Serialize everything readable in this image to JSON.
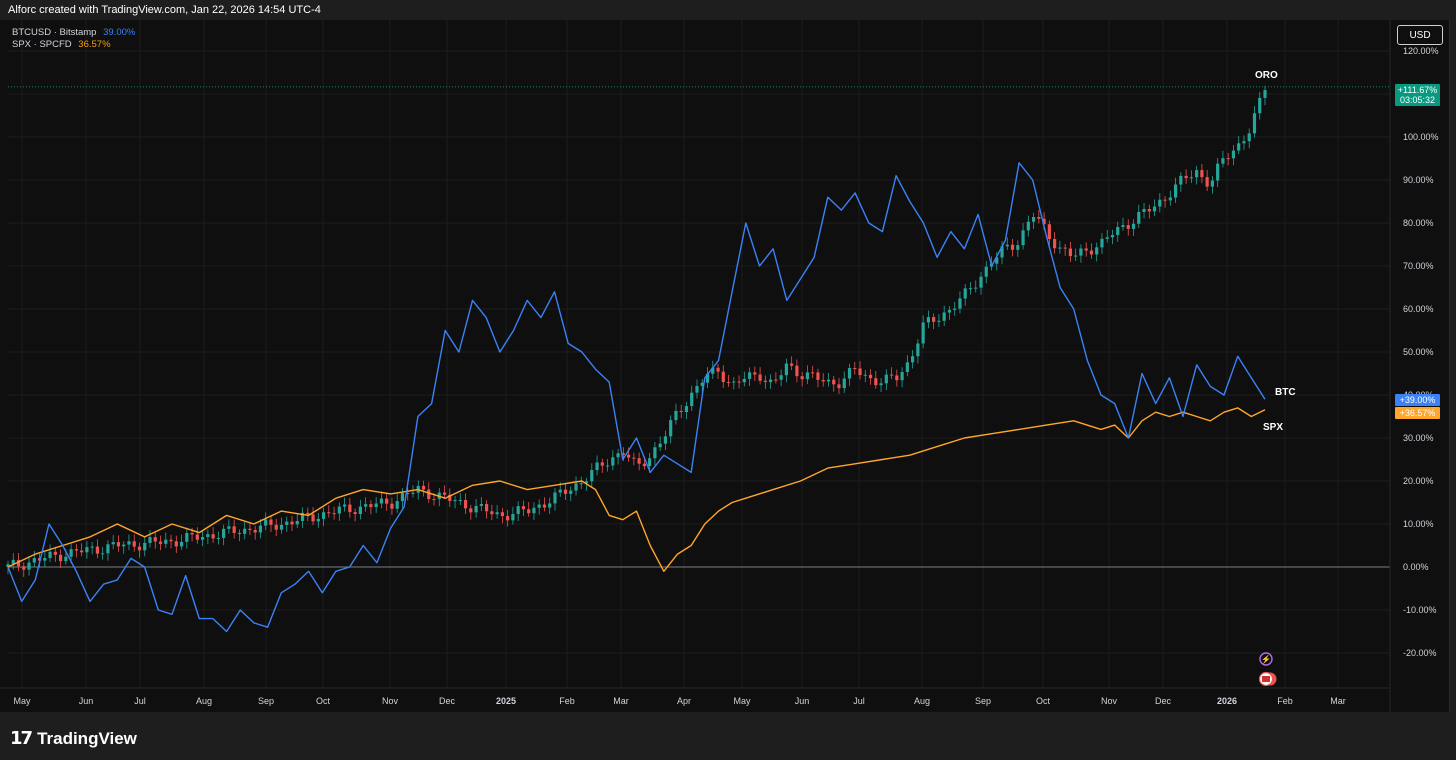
{
  "header": {
    "text": "Alforc created with TradingView.com, Jan 22, 2026 14:54 UTC-4"
  },
  "footer": {
    "brand": "TradingView"
  },
  "legend": [
    {
      "symbol": "BTCUSD · Bitstamp",
      "value": "39.00%",
      "color": "#3b82f6"
    },
    {
      "symbol": "SPX · SPCFD",
      "value": "36.57%",
      "color": "#f59e0b"
    }
  ],
  "toolbar": {
    "currency": "USD"
  },
  "colors": {
    "btc": "#3b82f6",
    "spx": "#ffa62b",
    "up": "#26a69a",
    "down": "#ef5350",
    "oro_badge": "#089981"
  },
  "chart_data": {
    "type": "line",
    "ylim": [
      -25,
      125
    ],
    "y_ticks": [
      "120.00%",
      "110.00%",
      "100.00%",
      "90.00%",
      "80.00%",
      "70.00%",
      "60.00%",
      "50.00%",
      "40.00%",
      "30.00%",
      "20.00%",
      "10.00%",
      "0.00%",
      "-10.00%",
      "-20.00%"
    ],
    "x_ticks": [
      "May",
      "Jun",
      "Jul",
      "Aug",
      "Sep",
      "Oct",
      "Nov",
      "Dec",
      "2025",
      "Feb",
      "Mar",
      "Apr",
      "May",
      "Jun",
      "Jul",
      "Aug",
      "Sep",
      "Oct",
      "Nov",
      "Dec",
      "2026",
      "Feb",
      "Mar"
    ],
    "series": [
      {
        "name": "BTC",
        "values": [
          [
            0,
            0
          ],
          [
            1,
            -8
          ],
          [
            2,
            -3
          ],
          [
            3,
            10
          ],
          [
            4,
            5
          ],
          [
            5,
            -1
          ],
          [
            6,
            -8
          ],
          [
            7,
            -4
          ],
          [
            8,
            -3
          ],
          [
            9,
            2
          ],
          [
            10,
            0
          ],
          [
            11,
            -10
          ],
          [
            12,
            -11
          ],
          [
            13,
            -2
          ],
          [
            14,
            -12
          ],
          [
            15,
            -12
          ],
          [
            16,
            -15
          ],
          [
            17,
            -10
          ],
          [
            18,
            -13
          ],
          [
            19,
            -14
          ],
          [
            20,
            -6
          ],
          [
            21,
            -4
          ],
          [
            22,
            -1
          ],
          [
            23,
            -6
          ],
          [
            24,
            -1
          ],
          [
            25,
            0
          ],
          [
            26,
            5
          ],
          [
            27,
            1
          ],
          [
            28,
            9
          ],
          [
            29,
            14
          ],
          [
            30,
            35
          ],
          [
            31,
            38
          ],
          [
            32,
            55
          ],
          [
            33,
            50
          ],
          [
            34,
            62
          ],
          [
            35,
            58
          ],
          [
            36,
            50
          ],
          [
            37,
            55
          ],
          [
            38,
            62
          ],
          [
            39,
            58
          ],
          [
            40,
            64
          ],
          [
            41,
            52
          ],
          [
            42,
            50
          ],
          [
            43,
            46
          ],
          [
            44,
            43
          ],
          [
            45,
            25
          ],
          [
            46,
            30
          ],
          [
            47,
            22
          ],
          [
            48,
            26
          ],
          [
            49,
            24
          ],
          [
            50,
            22
          ],
          [
            51,
            44
          ],
          [
            52,
            48
          ],
          [
            53,
            64
          ],
          [
            54,
            80
          ],
          [
            55,
            70
          ],
          [
            56,
            74
          ],
          [
            57,
            62
          ],
          [
            58,
            67
          ],
          [
            59,
            72
          ],
          [
            60,
            86
          ],
          [
            61,
            83
          ],
          [
            62,
            87
          ],
          [
            63,
            80
          ],
          [
            64,
            78
          ],
          [
            65,
            91
          ],
          [
            66,
            85
          ],
          [
            67,
            80
          ],
          [
            68,
            72
          ],
          [
            69,
            78
          ],
          [
            70,
            74
          ],
          [
            71,
            82
          ],
          [
            72,
            70
          ],
          [
            73,
            76
          ],
          [
            74,
            94
          ],
          [
            75,
            90
          ],
          [
            76,
            77
          ],
          [
            77,
            65
          ],
          [
            78,
            60
          ],
          [
            79,
            48
          ],
          [
            80,
            40
          ],
          [
            81,
            38
          ],
          [
            82,
            30
          ],
          [
            83,
            45
          ],
          [
            84,
            38
          ],
          [
            85,
            44
          ],
          [
            86,
            35
          ],
          [
            87,
            47
          ],
          [
            88,
            42
          ],
          [
            89,
            40
          ],
          [
            90,
            49
          ],
          [
            91,
            44
          ],
          [
            92,
            39
          ]
        ]
      },
      {
        "name": "SPX",
        "values": [
          [
            0,
            0
          ],
          [
            2,
            3
          ],
          [
            4,
            5
          ],
          [
            6,
            7
          ],
          [
            8,
            10
          ],
          [
            10,
            7
          ],
          [
            12,
            10
          ],
          [
            14,
            8
          ],
          [
            16,
            12
          ],
          [
            18,
            10
          ],
          [
            20,
            13
          ],
          [
            22,
            12
          ],
          [
            24,
            16
          ],
          [
            26,
            18
          ],
          [
            28,
            17
          ],
          [
            30,
            18
          ],
          [
            32,
            16
          ],
          [
            34,
            19
          ],
          [
            36,
            20
          ],
          [
            38,
            18
          ],
          [
            40,
            19
          ],
          [
            42,
            20
          ],
          [
            43,
            18
          ],
          [
            44,
            12
          ],
          [
            45,
            11
          ],
          [
            46,
            13
          ],
          [
            47,
            5
          ],
          [
            48,
            -1
          ],
          [
            49,
            3
          ],
          [
            50,
            5
          ],
          [
            51,
            10
          ],
          [
            52,
            13
          ],
          [
            53,
            15
          ],
          [
            54,
            16
          ],
          [
            56,
            18
          ],
          [
            58,
            20
          ],
          [
            60,
            23
          ],
          [
            62,
            24
          ],
          [
            64,
            25
          ],
          [
            66,
            26
          ],
          [
            68,
            28
          ],
          [
            70,
            30
          ],
          [
            72,
            31
          ],
          [
            74,
            32
          ],
          [
            76,
            33
          ],
          [
            78,
            34
          ],
          [
            80,
            32
          ],
          [
            81,
            33
          ],
          [
            82,
            30
          ],
          [
            83,
            34
          ],
          [
            84,
            36
          ],
          [
            85,
            35
          ],
          [
            86,
            36
          ],
          [
            87,
            35
          ],
          [
            88,
            34
          ],
          [
            89,
            36
          ],
          [
            90,
            37
          ],
          [
            91,
            35
          ],
          [
            92,
            36.57
          ]
        ]
      },
      {
        "name": "ORO",
        "values": [
          [
            0,
            0
          ],
          [
            4,
            3
          ],
          [
            8,
            5
          ],
          [
            12,
            6
          ],
          [
            16,
            8
          ],
          [
            20,
            10
          ],
          [
            24,
            13
          ],
          [
            28,
            15
          ],
          [
            30,
            18
          ],
          [
            32,
            16
          ],
          [
            34,
            14
          ],
          [
            36,
            12
          ],
          [
            38,
            13
          ],
          [
            40,
            16
          ],
          [
            42,
            20
          ],
          [
            44,
            25
          ],
          [
            45,
            27
          ],
          [
            46,
            23
          ],
          [
            47,
            26
          ],
          [
            48,
            30
          ],
          [
            49,
            36
          ],
          [
            50,
            40
          ],
          [
            51,
            44
          ],
          [
            52,
            46
          ],
          [
            53,
            42
          ],
          [
            54,
            44
          ],
          [
            55,
            45
          ],
          [
            56,
            42
          ],
          [
            57,
            47
          ],
          [
            58,
            45
          ],
          [
            59,
            44
          ],
          [
            60,
            43
          ],
          [
            61,
            43
          ],
          [
            62,
            46
          ],
          [
            63,
            44
          ],
          [
            64,
            43
          ],
          [
            65,
            44
          ],
          [
            66,
            48
          ],
          [
            67,
            56
          ],
          [
            68,
            58
          ],
          [
            69,
            60
          ],
          [
            70,
            63
          ],
          [
            71,
            67
          ],
          [
            72,
            71
          ],
          [
            73,
            74
          ],
          [
            74,
            76
          ],
          [
            75,
            82
          ],
          [
            76,
            78
          ],
          [
            77,
            74
          ],
          [
            78,
            72
          ],
          [
            79,
            74
          ],
          [
            80,
            75
          ],
          [
            81,
            78
          ],
          [
            82,
            80
          ],
          [
            83,
            82
          ],
          [
            84,
            84
          ],
          [
            85,
            87
          ],
          [
            86,
            90
          ],
          [
            87,
            92
          ],
          [
            88,
            89
          ],
          [
            89,
            95
          ],
          [
            90,
            98
          ],
          [
            91,
            102
          ],
          [
            92,
            111.67
          ]
        ]
      }
    ],
    "annotations": {
      "oro_label": "ORO",
      "btc_label": "BTC",
      "spx_label": "SPX",
      "oro_badge_value": "+111.67%",
      "oro_badge_time": "03:05:32",
      "btc_badge": "+39.00%",
      "spx_badge": "+36.57%"
    }
  }
}
